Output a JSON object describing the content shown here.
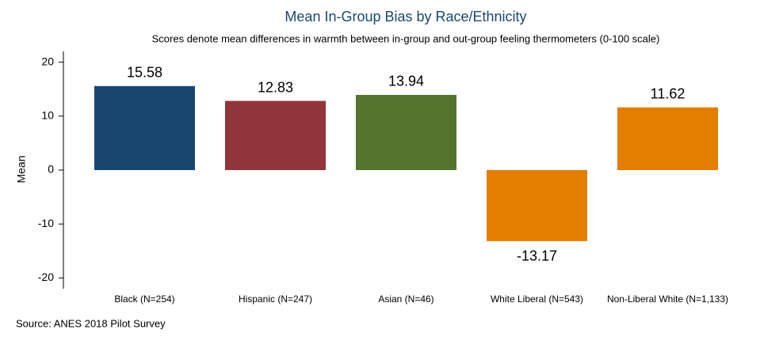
{
  "chart_data": {
    "type": "bar",
    "title": "Mean In-Group Bias by Race/Ethnicity",
    "subtitle": "Scores denote mean differences in warmth between in-group and out-group feeling thermometers (0-100 scale)",
    "y_label": "Mean",
    "note": "Source: ANES 2018 Pilot Survey",
    "categories": [
      "Black (N=254)",
      "Hispanic (N=247)",
      "Asian (N=46)",
      "White Liberal (N=543)",
      "Non-Liberal White (N=1,133)"
    ],
    "values": [
      15.58,
      12.83,
      13.94,
      -13.17,
      11.62
    ],
    "colors": [
      "#1a476f",
      "#90353b",
      "#55752f",
      "#e37e00",
      "#e37e00"
    ],
    "ylim": [
      -22,
      22
    ],
    "yticks": [
      -20,
      -10,
      0,
      10,
      20
    ],
    "grid": false
  }
}
